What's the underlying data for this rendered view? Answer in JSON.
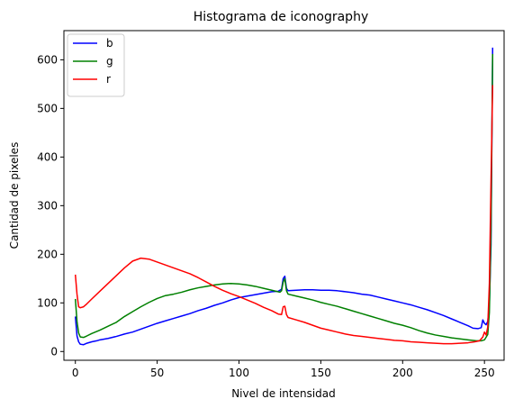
{
  "chart_data": {
    "type": "line",
    "title": "Histograma de iconography",
    "xlabel": "Nivel de intensidad",
    "ylabel": "Cantidad de pixeles",
    "xlim": [
      -7,
      262
    ],
    "ylim": [
      -18,
      660
    ],
    "xticks": [
      0,
      50,
      100,
      150,
      200,
      250
    ],
    "yticks": [
      0,
      100,
      200,
      300,
      400,
      500,
      600
    ],
    "grid": false,
    "legend_position": "upper-left",
    "series": [
      {
        "name": "b",
        "color": "#0000ff",
        "points": [
          [
            0,
            72
          ],
          [
            1,
            32
          ],
          [
            2,
            20
          ],
          [
            3,
            15
          ],
          [
            5,
            14
          ],
          [
            7,
            17
          ],
          [
            10,
            20
          ],
          [
            13,
            22
          ],
          [
            15,
            24
          ],
          [
            20,
            27
          ],
          [
            25,
            31
          ],
          [
            30,
            36
          ],
          [
            35,
            40
          ],
          [
            40,
            46
          ],
          [
            45,
            52
          ],
          [
            50,
            58
          ],
          [
            55,
            63
          ],
          [
            60,
            68
          ],
          [
            65,
            73
          ],
          [
            70,
            78
          ],
          [
            75,
            84
          ],
          [
            80,
            89
          ],
          [
            85,
            95
          ],
          [
            90,
            100
          ],
          [
            95,
            106
          ],
          [
            100,
            111
          ],
          [
            105,
            114
          ],
          [
            110,
            117
          ],
          [
            115,
            120
          ],
          [
            120,
            123
          ],
          [
            124,
            124
          ],
          [
            126,
            128
          ],
          [
            127,
            150
          ],
          [
            128,
            155
          ],
          [
            129,
            130
          ],
          [
            130,
            125
          ],
          [
            135,
            126
          ],
          [
            140,
            127
          ],
          [
            145,
            127
          ],
          [
            150,
            126
          ],
          [
            155,
            126
          ],
          [
            160,
            125
          ],
          [
            165,
            123
          ],
          [
            170,
            121
          ],
          [
            175,
            118
          ],
          [
            180,
            116
          ],
          [
            185,
            112
          ],
          [
            190,
            108
          ],
          [
            195,
            104
          ],
          [
            200,
            100
          ],
          [
            205,
            96
          ],
          [
            210,
            91
          ],
          [
            215,
            86
          ],
          [
            220,
            80
          ],
          [
            225,
            74
          ],
          [
            230,
            67
          ],
          [
            235,
            60
          ],
          [
            240,
            53
          ],
          [
            243,
            48
          ],
          [
            246,
            47
          ],
          [
            248,
            49
          ],
          [
            249,
            65
          ],
          [
            250,
            58
          ],
          [
            251,
            55
          ],
          [
            252,
            62
          ],
          [
            253,
            95
          ],
          [
            254,
            220
          ],
          [
            255,
            625
          ]
        ]
      },
      {
        "name": "g",
        "color": "#008000",
        "points": [
          [
            0,
            108
          ],
          [
            1,
            62
          ],
          [
            2,
            38
          ],
          [
            3,
            30
          ],
          [
            5,
            29
          ],
          [
            7,
            32
          ],
          [
            10,
            37
          ],
          [
            15,
            44
          ],
          [
            20,
            52
          ],
          [
            25,
            60
          ],
          [
            30,
            72
          ],
          [
            35,
            82
          ],
          [
            40,
            92
          ],
          [
            45,
            101
          ],
          [
            50,
            109
          ],
          [
            55,
            115
          ],
          [
            60,
            118
          ],
          [
            65,
            122
          ],
          [
            70,
            127
          ],
          [
            75,
            131
          ],
          [
            80,
            134
          ],
          [
            85,
            137
          ],
          [
            90,
            139
          ],
          [
            95,
            140
          ],
          [
            100,
            139
          ],
          [
            105,
            137
          ],
          [
            110,
            134
          ],
          [
            115,
            130
          ],
          [
            120,
            126
          ],
          [
            125,
            122
          ],
          [
            126,
            125
          ],
          [
            127,
            143
          ],
          [
            128,
            150
          ],
          [
            129,
            125
          ],
          [
            130,
            118
          ],
          [
            135,
            114
          ],
          [
            140,
            110
          ],
          [
            145,
            106
          ],
          [
            150,
            101
          ],
          [
            155,
            97
          ],
          [
            160,
            93
          ],
          [
            165,
            88
          ],
          [
            170,
            83
          ],
          [
            175,
            78
          ],
          [
            180,
            73
          ],
          [
            185,
            68
          ],
          [
            190,
            63
          ],
          [
            195,
            58
          ],
          [
            200,
            54
          ],
          [
            205,
            49
          ],
          [
            210,
            43
          ],
          [
            215,
            38
          ],
          [
            220,
            34
          ],
          [
            225,
            31
          ],
          [
            230,
            28
          ],
          [
            235,
            26
          ],
          [
            240,
            24
          ],
          [
            245,
            22
          ],
          [
            248,
            22
          ],
          [
            250,
            24
          ],
          [
            252,
            35
          ],
          [
            253,
            80
          ],
          [
            254,
            250
          ],
          [
            255,
            612
          ]
        ]
      },
      {
        "name": "r",
        "color": "#ff0000",
        "points": [
          [
            0,
            158
          ],
          [
            1,
            118
          ],
          [
            2,
            92
          ],
          [
            3,
            90
          ],
          [
            5,
            92
          ],
          [
            7,
            98
          ],
          [
            10,
            108
          ],
          [
            15,
            124
          ],
          [
            20,
            140
          ],
          [
            25,
            156
          ],
          [
            30,
            172
          ],
          [
            35,
            186
          ],
          [
            40,
            192
          ],
          [
            45,
            190
          ],
          [
            50,
            184
          ],
          [
            55,
            178
          ],
          [
            60,
            172
          ],
          [
            65,
            166
          ],
          [
            70,
            160
          ],
          [
            75,
            152
          ],
          [
            80,
            143
          ],
          [
            85,
            134
          ],
          [
            90,
            126
          ],
          [
            95,
            119
          ],
          [
            100,
            113
          ],
          [
            105,
            106
          ],
          [
            110,
            99
          ],
          [
            115,
            91
          ],
          [
            120,
            84
          ],
          [
            124,
            77
          ],
          [
            126,
            76
          ],
          [
            127,
            92
          ],
          [
            128,
            93
          ],
          [
            129,
            76
          ],
          [
            130,
            70
          ],
          [
            135,
            65
          ],
          [
            140,
            60
          ],
          [
            145,
            54
          ],
          [
            150,
            48
          ],
          [
            155,
            44
          ],
          [
            160,
            40
          ],
          [
            165,
            36
          ],
          [
            170,
            33
          ],
          [
            175,
            31
          ],
          [
            180,
            29
          ],
          [
            185,
            27
          ],
          [
            190,
            25
          ],
          [
            195,
            23
          ],
          [
            200,
            22
          ],
          [
            205,
            20
          ],
          [
            210,
            19
          ],
          [
            215,
            18
          ],
          [
            220,
            17
          ],
          [
            225,
            16
          ],
          [
            230,
            16
          ],
          [
            235,
            17
          ],
          [
            240,
            18
          ],
          [
            244,
            20
          ],
          [
            247,
            22
          ],
          [
            249,
            30
          ],
          [
            250,
            40
          ],
          [
            251,
            34
          ],
          [
            252,
            50
          ],
          [
            253,
            140
          ],
          [
            254,
            350
          ],
          [
            255,
            548
          ]
        ]
      }
    ]
  }
}
